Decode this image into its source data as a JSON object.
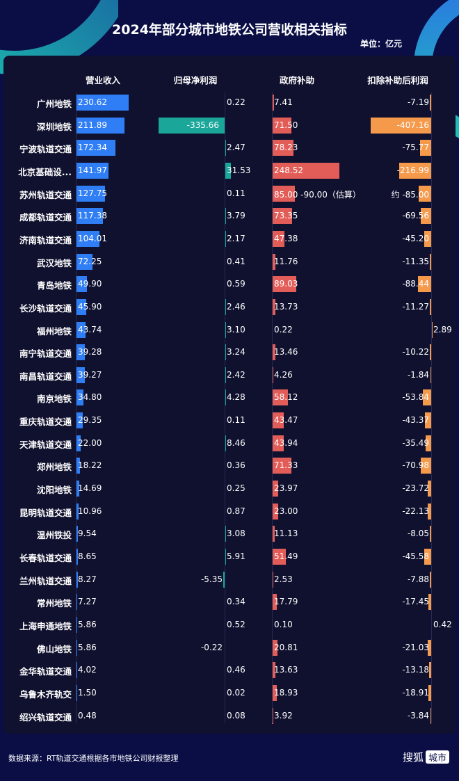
{
  "title": "2024年部分城市地铁公司营收相关指标",
  "unit": "单位：亿元",
  "footer": {
    "source": "数据来源：RT轨道交通根据各市地铁公司财报整理",
    "logo_text": "搜狐",
    "logo_box": "城市"
  },
  "chart_data": {
    "type": "bar",
    "orientation": "horizontal",
    "categories": [
      "广州地铁",
      "深圳地铁",
      "宁波轨道交通",
      "北京基础设...",
      "苏州轨道交通",
      "成都轨道交通",
      "济南轨道交通",
      "武汉地铁",
      "青岛地铁",
      "长沙轨道交通",
      "福州地铁",
      "南宁轨道交通",
      "南昌轨道交通",
      "南京地铁",
      "重庆轨道交通",
      "天津轨道交通",
      "郑州地铁",
      "沈阳地铁",
      "昆明轨道交通",
      "温州铁投",
      "长春轨道交通",
      "兰州轨道交通",
      "常州地铁",
      "上海申通地铁",
      "佛山地铁",
      "金华轨道交通",
      "乌鲁木齐轨交",
      "绍兴轨道交通"
    ],
    "series": [
      {
        "name": "营业收入",
        "color": "#2f7ef5",
        "values": [
          230.62,
          211.89,
          172.34,
          141.97,
          127.75,
          117.38,
          104.01,
          72.25,
          49.9,
          45.9,
          43.74,
          39.28,
          39.27,
          34.8,
          29.35,
          22.0,
          18.22,
          14.69,
          10.96,
          9.54,
          8.65,
          8.27,
          7.27,
          5.86,
          5.86,
          4.02,
          1.5,
          0.48
        ]
      },
      {
        "name": "归母净利润",
        "color": "#1aa79a",
        "values": [
          0.22,
          -335.66,
          2.47,
          31.53,
          0.11,
          3.79,
          2.17,
          0.41,
          0.59,
          2.46,
          3.1,
          3.24,
          2.42,
          4.28,
          0.11,
          8.46,
          0.36,
          0.25,
          0.87,
          3.08,
          5.91,
          -5.35,
          0.34,
          0.52,
          -0.22,
          0.46,
          0.02,
          0.08
        ]
      },
      {
        "name": "政府补助",
        "color": "#e35d58",
        "values": [
          7.41,
          71.5,
          78.23,
          248.52,
          85.0,
          73.35,
          47.38,
          11.76,
          89.03,
          13.73,
          0.22,
          13.46,
          4.26,
          58.12,
          43.47,
          43.94,
          71.33,
          23.97,
          23.0,
          11.13,
          51.49,
          2.53,
          17.79,
          0.1,
          20.81,
          13.63,
          18.93,
          3.92
        ],
        "labels": {
          "4": "85.00 -90.00（估算）"
        }
      },
      {
        "name": "扣除补助后利润",
        "color": "#f59a4b",
        "values": [
          -7.19,
          -407.16,
          -75.77,
          -216.99,
          -85.0,
          -69.56,
          -45.2,
          -11.35,
          -88.44,
          -11.27,
          2.89,
          -10.22,
          -1.84,
          -53.84,
          -43.37,
          -35.49,
          -70.98,
          -23.72,
          -22.13,
          -8.05,
          -45.58,
          -7.88,
          -17.45,
          0.42,
          -21.03,
          -13.18,
          -18.91,
          -3.84
        ],
        "labels": {
          "4": "约 -85.00"
        }
      }
    ]
  }
}
